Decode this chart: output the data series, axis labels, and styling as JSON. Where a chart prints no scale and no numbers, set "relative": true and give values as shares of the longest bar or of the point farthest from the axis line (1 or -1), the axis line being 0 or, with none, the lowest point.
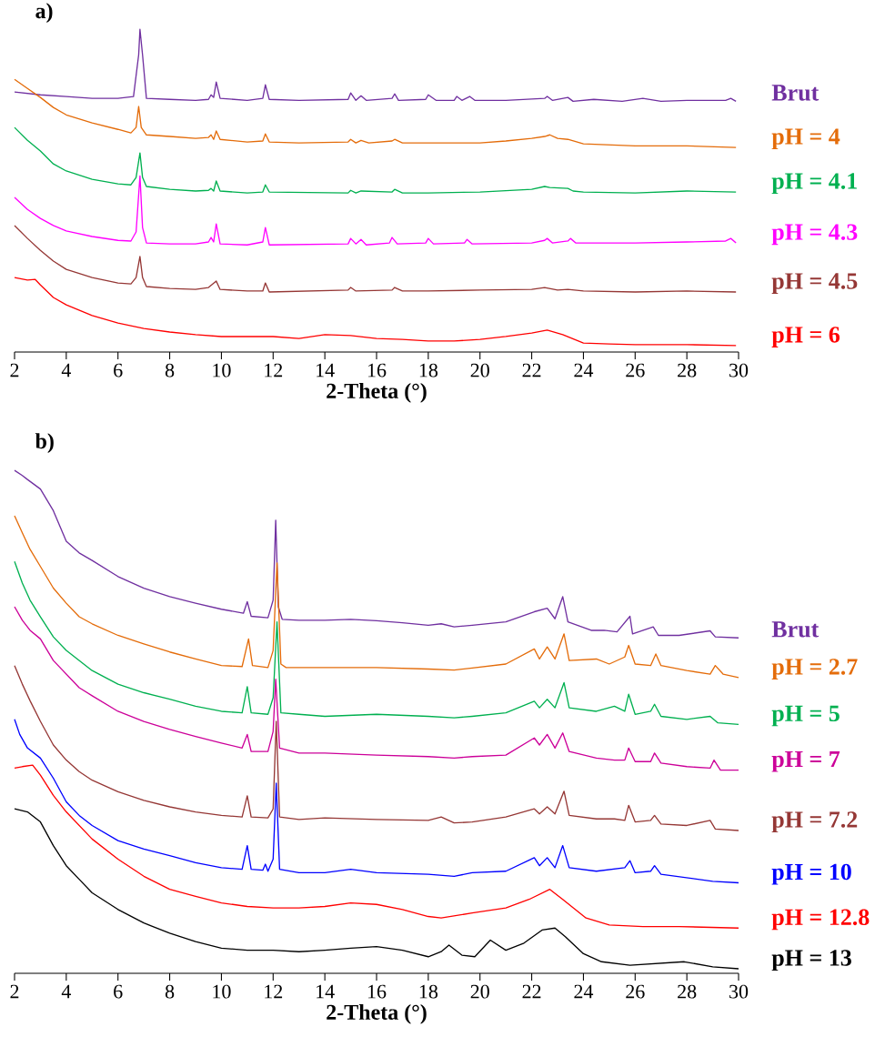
{
  "chart_data": [
    {
      "type": "line",
      "title": "a)",
      "xlabel": "2-Theta (°)",
      "relative": true,
      "xlim": [
        2,
        30
      ],
      "xticks": [
        2,
        4,
        6,
        8,
        10,
        12,
        14,
        16,
        18,
        20,
        22,
        24,
        26,
        28,
        30
      ],
      "series": [
        {
          "name": "Brut",
          "color": "#7030a0",
          "x": [
            2,
            3,
            4,
            5,
            6,
            6.6,
            6.8,
            6.85,
            6.95,
            7.1,
            8,
            9,
            9.5,
            9.6,
            9.7,
            9.8,
            9.95,
            11,
            11.6,
            11.7,
            11.85,
            13,
            14.9,
            15,
            15.2,
            15.4,
            15.6,
            16.6,
            16.7,
            16.85,
            17.9,
            18,
            18.3,
            19,
            19.1,
            19.3,
            19.6,
            19.8,
            21,
            22.5,
            22.6,
            22.8,
            23.4,
            23.6,
            24.4,
            25.5,
            26.3,
            27,
            28,
            29.5,
            29.7,
            29.9
          ],
          "values": [
            0.806,
            0.797,
            0.792,
            0.786,
            0.786,
            0.792,
            0.921,
            1,
            0.921,
            0.786,
            0.783,
            0.78,
            0.783,
            0.797,
            0.789,
            0.837,
            0.786,
            0.78,
            0.786,
            0.828,
            0.783,
            0.78,
            0.783,
            0.803,
            0.78,
            0.794,
            0.78,
            0.786,
            0.8,
            0.78,
            0.783,
            0.797,
            0.78,
            0.78,
            0.792,
            0.78,
            0.792,
            0.78,
            0.78,
            0.786,
            0.792,
            0.78,
            0.789,
            0.777,
            0.783,
            0.777,
            0.786,
            0.777,
            0.78,
            0.78,
            0.786,
            0.777
          ]
        },
        {
          "name": "pH = 4",
          "color": "#e46c0a",
          "x": [
            2,
            2.5,
            3,
            3.5,
            4,
            5,
            6,
            6.5,
            6.7,
            6.8,
            6.9,
            7.1,
            8,
            9,
            9.5,
            9.6,
            9.7,
            9.8,
            9.95,
            11,
            11.6,
            11.7,
            11.85,
            13,
            14.9,
            15,
            15.2,
            15.4,
            15.7,
            16.6,
            16.7,
            17,
            18,
            20,
            21,
            22,
            22.5,
            22.7,
            23,
            23.4,
            24,
            26,
            28,
            29.9
          ],
          "values": [
            0.845,
            0.817,
            0.789,
            0.758,
            0.735,
            0.71,
            0.69,
            0.679,
            0.696,
            0.761,
            0.696,
            0.673,
            0.668,
            0.662,
            0.665,
            0.673,
            0.659,
            0.685,
            0.659,
            0.651,
            0.654,
            0.676,
            0.651,
            0.648,
            0.651,
            0.659,
            0.648,
            0.656,
            0.648,
            0.654,
            0.659,
            0.648,
            0.648,
            0.648,
            0.654,
            0.662,
            0.668,
            0.673,
            0.662,
            0.659,
            0.645,
            0.639,
            0.639,
            0.634
          ]
        },
        {
          "name": "pH = 4.1",
          "color": "#00b050",
          "x": [
            2,
            2.5,
            3,
            3.5,
            4,
            5,
            6,
            6.5,
            6.7,
            6.85,
            6.95,
            7.1,
            8,
            9,
            9.5,
            9.6,
            9.7,
            9.8,
            9.95,
            11,
            11.6,
            11.7,
            11.85,
            14.9,
            15,
            15.2,
            15.4,
            16.6,
            16.7,
            17,
            18,
            20,
            22,
            22.5,
            22.7,
            23.4,
            23.6,
            24,
            26,
            28,
            29.9
          ],
          "values": [
            0.696,
            0.656,
            0.623,
            0.583,
            0.561,
            0.535,
            0.521,
            0.518,
            0.541,
            0.617,
            0.541,
            0.513,
            0.504,
            0.499,
            0.501,
            0.507,
            0.499,
            0.53,
            0.499,
            0.493,
            0.496,
            0.518,
            0.496,
            0.493,
            0.501,
            0.493,
            0.499,
            0.496,
            0.504,
            0.493,
            0.493,
            0.496,
            0.504,
            0.513,
            0.51,
            0.507,
            0.499,
            0.496,
            0.493,
            0.499,
            0.496
          ]
        },
        {
          "name": "pH = 4.3",
          "color": "#ff00ff",
          "x": [
            2,
            2.5,
            3,
            3.5,
            4,
            5,
            6,
            6.5,
            6.7,
            6.85,
            6.95,
            7.1,
            8,
            9,
            9.5,
            9.6,
            9.7,
            9.8,
            9.95,
            11,
            11.6,
            11.7,
            11.85,
            14.9,
            15,
            15.2,
            15.4,
            15.6,
            16.5,
            16.6,
            16.8,
            17.9,
            18,
            18.2,
            19.4,
            19.5,
            19.7,
            22,
            22.5,
            22.6,
            22.8,
            23.4,
            23.5,
            23.7,
            26,
            28,
            29.5,
            29.7,
            29.9
          ],
          "values": [
            0.479,
            0.442,
            0.414,
            0.392,
            0.375,
            0.358,
            0.346,
            0.344,
            0.372,
            0.546,
            0.386,
            0.338,
            0.335,
            0.335,
            0.341,
            0.355,
            0.341,
            0.397,
            0.335,
            0.332,
            0.341,
            0.386,
            0.332,
            0.335,
            0.352,
            0.335,
            0.349,
            0.332,
            0.338,
            0.355,
            0.335,
            0.338,
            0.352,
            0.335,
            0.338,
            0.349,
            0.335,
            0.338,
            0.346,
            0.352,
            0.338,
            0.344,
            0.352,
            0.338,
            0.338,
            0.341,
            0.344,
            0.352,
            0.338
          ]
        },
        {
          "name": "pH = 4.5",
          "color": "#953735",
          "x": [
            2,
            2.5,
            3,
            3.5,
            4,
            5,
            6,
            6.5,
            6.7,
            6.85,
            6.95,
            7.1,
            8,
            9,
            9.5,
            9.8,
            9.95,
            11,
            11.6,
            11.7,
            11.85,
            14.9,
            15,
            15.2,
            16.6,
            16.7,
            17,
            18,
            20,
            22,
            22.5,
            23,
            23.4,
            24,
            26,
            28,
            29.9
          ],
          "values": [
            0.392,
            0.352,
            0.315,
            0.282,
            0.256,
            0.231,
            0.214,
            0.211,
            0.231,
            0.296,
            0.231,
            0.203,
            0.197,
            0.194,
            0.2,
            0.22,
            0.194,
            0.189,
            0.189,
            0.214,
            0.186,
            0.192,
            0.2,
            0.189,
            0.192,
            0.2,
            0.189,
            0.189,
            0.192,
            0.194,
            0.2,
            0.192,
            0.194,
            0.189,
            0.186,
            0.189,
            0.186
          ]
        },
        {
          "name": "pH = 6",
          "color": "#ff0000",
          "x": [
            2,
            2.5,
            2.8,
            3,
            3.5,
            4,
            5,
            6,
            7,
            8,
            9,
            10,
            11,
            12,
            13,
            14,
            15,
            16,
            17,
            18,
            19,
            20,
            21,
            22,
            22.6,
            23.2,
            24,
            25,
            26,
            28,
            29.9
          ],
          "values": [
            0.231,
            0.223,
            0.225,
            0.208,
            0.169,
            0.146,
            0.113,
            0.09,
            0.073,
            0.062,
            0.054,
            0.048,
            0.048,
            0.048,
            0.042,
            0.054,
            0.051,
            0.042,
            0.039,
            0.034,
            0.034,
            0.039,
            0.048,
            0.059,
            0.068,
            0.054,
            0.028,
            0.025,
            0.023,
            0.023,
            0.02
          ]
        }
      ]
    },
    {
      "type": "line",
      "title": "b)",
      "xlabel": "2-Theta (°)",
      "relative": true,
      "xlim": [
        2,
        30
      ],
      "xticks": [
        2,
        4,
        6,
        8,
        10,
        12,
        14,
        16,
        18,
        20,
        22,
        24,
        26,
        28,
        30
      ],
      "series": [
        {
          "name": "Brut",
          "color": "#7030a0",
          "x": [
            2,
            2.3,
            2.5,
            3,
            3.5,
            4,
            4.5,
            5,
            6,
            7,
            8,
            9,
            10,
            10.85,
            11,
            11.15,
            11.8,
            12,
            12.1,
            12.2,
            12.35,
            13,
            14,
            15,
            16,
            17,
            18,
            18.5,
            19,
            19.7,
            21,
            22.1,
            22.6,
            22.9,
            23.2,
            23.4,
            24.3,
            24.8,
            25.3,
            25.8,
            25.9,
            26.7,
            26.9,
            27.7,
            28.9,
            29.1,
            30
          ],
          "values": [
            1,
            0.99,
            0.982,
            0.963,
            0.92,
            0.859,
            0.836,
            0.821,
            0.789,
            0.766,
            0.749,
            0.736,
            0.724,
            0.716,
            0.739,
            0.71,
            0.707,
            0.742,
            0.901,
            0.729,
            0.704,
            0.702,
            0.702,
            0.704,
            0.701,
            0.697,
            0.692,
            0.695,
            0.689,
            0.692,
            0.699,
            0.719,
            0.726,
            0.705,
            0.749,
            0.699,
            0.682,
            0.682,
            0.679,
            0.71,
            0.675,
            0.689,
            0.672,
            0.672,
            0.681,
            0.669,
            0.667
          ]
        },
        {
          "name": "pH = 2.7",
          "color": "#e46c0a",
          "x": [
            2,
            2.3,
            2.6,
            3,
            3.5,
            4,
            4.5,
            5,
            6,
            7,
            8,
            9,
            10,
            10.8,
            11.05,
            11.2,
            11.8,
            12,
            12.15,
            12.3,
            12.5,
            14,
            16,
            18,
            19,
            19.7,
            21,
            22.1,
            22.3,
            22.6,
            22.9,
            23.25,
            23.45,
            24.5,
            25,
            25.6,
            25.75,
            26,
            26.6,
            26.8,
            27,
            28,
            28.9,
            29.1,
            29.4,
            30
          ],
          "values": [
            0.91,
            0.876,
            0.843,
            0.809,
            0.766,
            0.736,
            0.709,
            0.695,
            0.672,
            0.655,
            0.639,
            0.625,
            0.612,
            0.61,
            0.665,
            0.612,
            0.608,
            0.642,
            0.816,
            0.615,
            0.608,
            0.608,
            0.608,
            0.605,
            0.603,
            0.607,
            0.615,
            0.645,
            0.625,
            0.649,
            0.625,
            0.675,
            0.622,
            0.625,
            0.615,
            0.629,
            0.652,
            0.615,
            0.612,
            0.635,
            0.612,
            0.602,
            0.595,
            0.612,
            0.595,
            0.588
          ]
        },
        {
          "name": "pH = 5",
          "color": "#00b050",
          "x": [
            2,
            2.3,
            2.6,
            3,
            3.5,
            4,
            4.5,
            5,
            6,
            7,
            8,
            9,
            10,
            10.8,
            11,
            11.15,
            11.8,
            12,
            12.15,
            12.3,
            13,
            14,
            16,
            18,
            19,
            19.7,
            21,
            22.1,
            22.3,
            22.6,
            22.9,
            23.25,
            23.45,
            24.5,
            25.2,
            25.6,
            25.75,
            26,
            26.6,
            26.75,
            27,
            28,
            28.9,
            29.2,
            30
          ],
          "values": [
            0.819,
            0.776,
            0.742,
            0.709,
            0.669,
            0.642,
            0.622,
            0.602,
            0.575,
            0.558,
            0.545,
            0.531,
            0.521,
            0.518,
            0.57,
            0.518,
            0.515,
            0.548,
            0.699,
            0.518,
            0.515,
            0.511,
            0.515,
            0.511,
            0.508,
            0.511,
            0.518,
            0.541,
            0.528,
            0.545,
            0.528,
            0.578,
            0.528,
            0.521,
            0.531,
            0.521,
            0.555,
            0.515,
            0.521,
            0.535,
            0.511,
            0.505,
            0.511,
            0.498,
            0.495
          ]
        },
        {
          "name": "pH = 7",
          "color": "#cc0099",
          "x": [
            2,
            2.3,
            2.6,
            3,
            3.5,
            4,
            4.5,
            5,
            6,
            7,
            8,
            9,
            10,
            10.8,
            11,
            11.15,
            11.8,
            12,
            12.1,
            12.25,
            13,
            14,
            16,
            18,
            19,
            19.7,
            21,
            22.1,
            22.3,
            22.6,
            22.9,
            23.2,
            23.45,
            24.5,
            25.2,
            25.6,
            25.75,
            26,
            26.6,
            26.75,
            27,
            28,
            28.9,
            29.05,
            29.3,
            30
          ],
          "values": [
            0.729,
            0.702,
            0.682,
            0.665,
            0.622,
            0.595,
            0.568,
            0.552,
            0.521,
            0.501,
            0.485,
            0.471,
            0.458,
            0.448,
            0.475,
            0.441,
            0.441,
            0.481,
            0.585,
            0.448,
            0.438,
            0.438,
            0.434,
            0.431,
            0.428,
            0.431,
            0.434,
            0.468,
            0.454,
            0.475,
            0.448,
            0.478,
            0.441,
            0.428,
            0.424,
            0.424,
            0.448,
            0.421,
            0.421,
            0.438,
            0.418,
            0.411,
            0.408,
            0.424,
            0.404,
            0.404
          ]
        },
        {
          "name": "pH = 7.2",
          "color": "#953735",
          "x": [
            2,
            2.3,
            2.6,
            3,
            3.5,
            4,
            4.5,
            5,
            6,
            7,
            8,
            9,
            10,
            10.8,
            11,
            11.15,
            11.8,
            12,
            12.12,
            12.25,
            13,
            14,
            16,
            18,
            18.5,
            19,
            19.7,
            21,
            22.1,
            22.3,
            22.6,
            22.9,
            23.25,
            23.45,
            24.5,
            25.2,
            25.6,
            25.75,
            26,
            26.6,
            26.75,
            27,
            28,
            28.9,
            29.1,
            30
          ],
          "values": [
            0.612,
            0.575,
            0.542,
            0.501,
            0.454,
            0.424,
            0.401,
            0.384,
            0.361,
            0.344,
            0.331,
            0.321,
            0.314,
            0.311,
            0.353,
            0.311,
            0.309,
            0.327,
            0.501,
            0.311,
            0.306,
            0.309,
            0.306,
            0.304,
            0.311,
            0.299,
            0.301,
            0.311,
            0.327,
            0.317,
            0.331,
            0.317,
            0.362,
            0.314,
            0.307,
            0.307,
            0.304,
            0.334,
            0.301,
            0.304,
            0.314,
            0.297,
            0.294,
            0.304,
            0.287,
            0.284
          ]
        },
        {
          "name": "pH = 10",
          "color": "#0000ff",
          "x": [
            2,
            2.2,
            2.5,
            3,
            3.5,
            4,
            4.5,
            5,
            6,
            7,
            8,
            9,
            10,
            10.8,
            11,
            11.15,
            11.6,
            11.7,
            11.8,
            12,
            12.12,
            12.25,
            13,
            14,
            15,
            16,
            18,
            19,
            19.7,
            21,
            22.1,
            22.3,
            22.6,
            22.9,
            23.2,
            23.45,
            24.5,
            25.6,
            25.8,
            26,
            26.6,
            26.75,
            27,
            28,
            29,
            30
          ],
          "values": [
            0.505,
            0.475,
            0.448,
            0.428,
            0.388,
            0.341,
            0.314,
            0.294,
            0.264,
            0.247,
            0.234,
            0.22,
            0.21,
            0.207,
            0.254,
            0.207,
            0.205,
            0.217,
            0.203,
            0.227,
            0.378,
            0.207,
            0.2,
            0.2,
            0.207,
            0.2,
            0.197,
            0.193,
            0.2,
            0.203,
            0.23,
            0.214,
            0.23,
            0.21,
            0.254,
            0.21,
            0.203,
            0.21,
            0.224,
            0.2,
            0.203,
            0.214,
            0.197,
            0.19,
            0.183,
            0.18
          ]
        },
        {
          "name": "pH = 12.8",
          "color": "#ff0000",
          "x": [
            2,
            2.3,
            2.7,
            3,
            3.5,
            4,
            4.5,
            5,
            6,
            7,
            8,
            9,
            10,
            11,
            12,
            13,
            14,
            15,
            16,
            17,
            18,
            18.5,
            19.7,
            21,
            21.9,
            22.7,
            23.2,
            24.1,
            25,
            26.3,
            27.7,
            30
          ],
          "values": [
            0.408,
            0.411,
            0.414,
            0.394,
            0.354,
            0.321,
            0.294,
            0.267,
            0.227,
            0.193,
            0.167,
            0.153,
            0.14,
            0.133,
            0.13,
            0.13,
            0.133,
            0.14,
            0.137,
            0.127,
            0.113,
            0.11,
            0.12,
            0.13,
            0.147,
            0.167,
            0.147,
            0.11,
            0.096,
            0.093,
            0.093,
            0.09
          ]
        },
        {
          "name": "pH = 13",
          "color": "#000000",
          "x": [
            2,
            2.5,
            3,
            3.5,
            4,
            4.5,
            5,
            6,
            7,
            8,
            9,
            10,
            11,
            12,
            13,
            14,
            15,
            16,
            17,
            18,
            18.5,
            18.8,
            19.3,
            19.8,
            20.4,
            21,
            21.7,
            22.4,
            22.9,
            23.3,
            24,
            24.7,
            25.8,
            27.9,
            29,
            30
          ],
          "values": [
            0.327,
            0.321,
            0.301,
            0.254,
            0.214,
            0.187,
            0.16,
            0.127,
            0.1,
            0.08,
            0.063,
            0.05,
            0.046,
            0.046,
            0.043,
            0.046,
            0.05,
            0.053,
            0.046,
            0.033,
            0.043,
            0.056,
            0.036,
            0.033,
            0.066,
            0.046,
            0.06,
            0.086,
            0.09,
            0.073,
            0.039,
            0.023,
            0.016,
            0.023,
            0.013,
            0.009
          ]
        }
      ]
    }
  ]
}
